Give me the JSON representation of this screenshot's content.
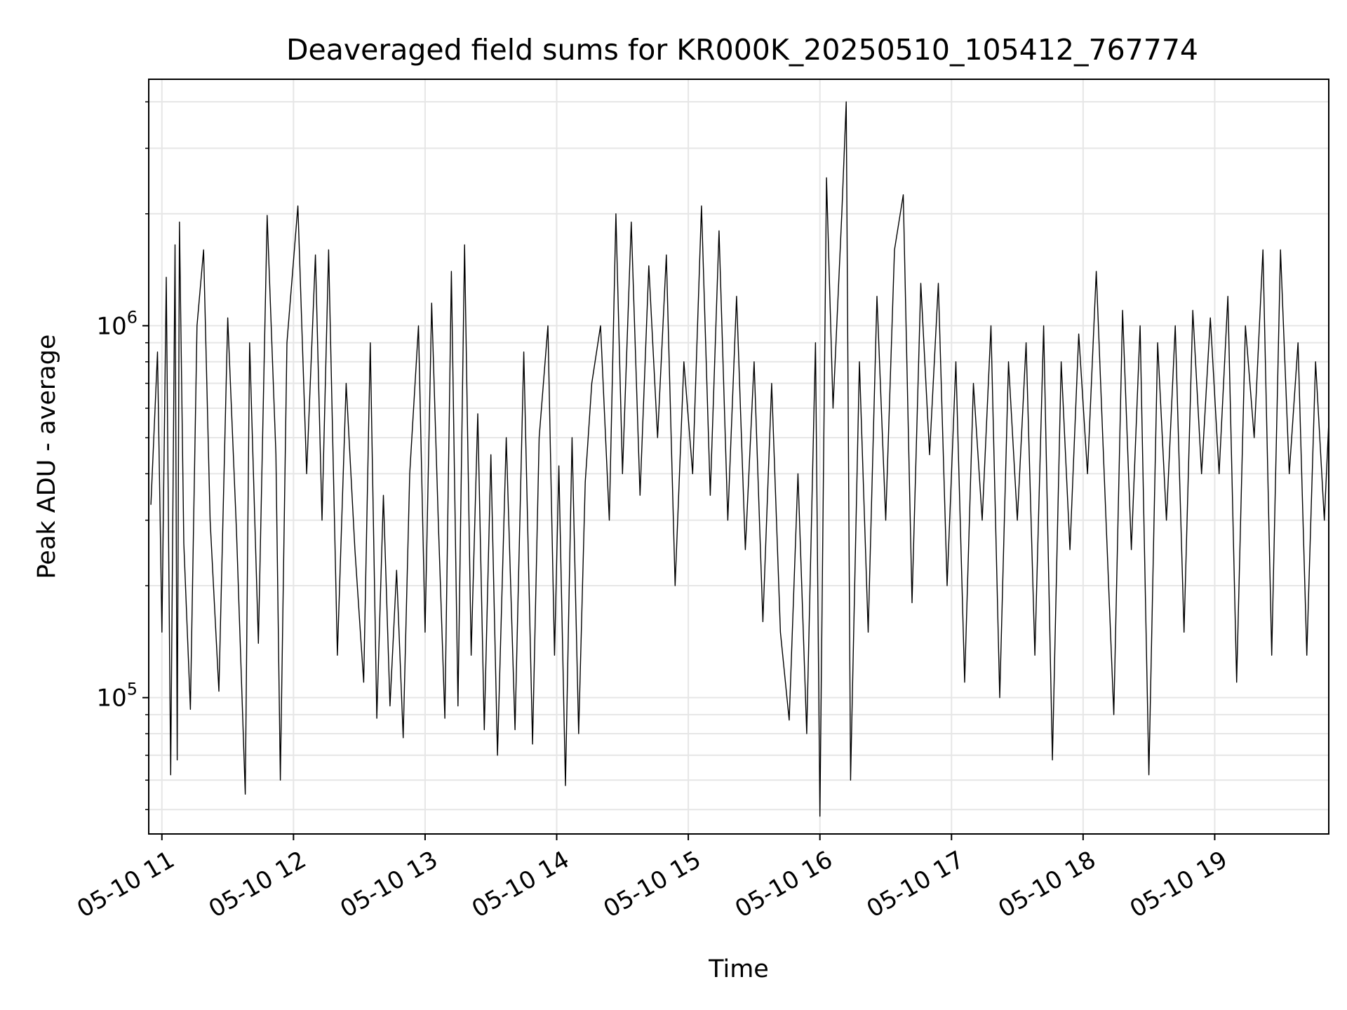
{
  "chart_data": {
    "type": "line",
    "title": "Deaveraged field sums for KR000K_20250510_105412_767774",
    "xlabel": "Time",
    "ylabel": "Peak ADU - average",
    "yscale": "log",
    "ylim": [
      43000,
      4600000
    ],
    "xlim": [
      "2025-05-10 10:54",
      "2025-05-10 19:52"
    ],
    "grid": true,
    "line_color": "#000000",
    "grid_color": "#e6e6e6",
    "x_ticks": [
      "2025-05-10 11:00",
      "2025-05-10 12:00",
      "2025-05-10 13:00",
      "2025-05-10 14:00",
      "2025-05-10 15:00",
      "2025-05-10 16:00",
      "2025-05-10 17:00",
      "2025-05-10 18:00",
      "2025-05-10 19:00"
    ],
    "x_tick_labels": [
      "05-10 11",
      "05-10 12",
      "05-10 13",
      "05-10 14",
      "05-10 15",
      "05-10 16",
      "05-10 17",
      "05-10 18",
      "05-10 19"
    ],
    "y_ticks": [
      {
        "value": 100000,
        "base": "10",
        "exp": "5"
      },
      {
        "value": 1000000,
        "base": "10",
        "exp": "6"
      }
    ],
    "series": [
      {
        "points": [
          [
            "2025-05-10 10:55",
            330000
          ],
          [
            "2025-05-10 10:58",
            850000
          ],
          [
            "2025-05-10 11:00",
            150000
          ],
          [
            "2025-05-10 11:02",
            1350000
          ],
          [
            "2025-05-10 11:04",
            62000
          ],
          [
            "2025-05-10 11:06",
            1650000
          ],
          [
            "2025-05-10 11:07",
            68000
          ],
          [
            "2025-05-10 11:08",
            1900000
          ],
          [
            "2025-05-10 11:10",
            260000
          ],
          [
            "2025-05-10 11:13",
            93000
          ],
          [
            "2025-05-10 11:16",
            1000000
          ],
          [
            "2025-05-10 11:19",
            1600000
          ],
          [
            "2025-05-10 11:22",
            300000
          ],
          [
            "2025-05-10 11:26",
            104000
          ],
          [
            "2025-05-10 11:30",
            1050000
          ],
          [
            "2025-05-10 11:34",
            280000
          ],
          [
            "2025-05-10 11:38",
            55000
          ],
          [
            "2025-05-10 11:40",
            900000
          ],
          [
            "2025-05-10 11:44",
            140000
          ],
          [
            "2025-05-10 11:48",
            1980000
          ],
          [
            "2025-05-10 11:52",
            450000
          ],
          [
            "2025-05-10 11:54",
            60000
          ],
          [
            "2025-05-10 11:57",
            900000
          ],
          [
            "2025-05-10 12:02",
            2100000
          ],
          [
            "2025-05-10 12:06",
            400000
          ],
          [
            "2025-05-10 12:10",
            1550000
          ],
          [
            "2025-05-10 12:13",
            300000
          ],
          [
            "2025-05-10 12:16",
            1600000
          ],
          [
            "2025-05-10 12:20",
            130000
          ],
          [
            "2025-05-10 12:24",
            700000
          ],
          [
            "2025-05-10 12:28",
            250000
          ],
          [
            "2025-05-10 12:32",
            110000
          ],
          [
            "2025-05-10 12:35",
            900000
          ],
          [
            "2025-05-10 12:38",
            88000
          ],
          [
            "2025-05-10 12:41",
            350000
          ],
          [
            "2025-05-10 12:44",
            95000
          ],
          [
            "2025-05-10 12:47",
            220000
          ],
          [
            "2025-05-10 12:50",
            78000
          ],
          [
            "2025-05-10 12:53",
            400000
          ],
          [
            "2025-05-10 12:57",
            1000000
          ],
          [
            "2025-05-10 13:00",
            150000
          ],
          [
            "2025-05-10 13:03",
            1150000
          ],
          [
            "2025-05-10 13:06",
            300000
          ],
          [
            "2025-05-10 13:09",
            88000
          ],
          [
            "2025-05-10 13:12",
            1400000
          ],
          [
            "2025-05-10 13:15",
            95000
          ],
          [
            "2025-05-10 13:18",
            1650000
          ],
          [
            "2025-05-10 13:21",
            130000
          ],
          [
            "2025-05-10 13:24",
            580000
          ],
          [
            "2025-05-10 13:27",
            82000
          ],
          [
            "2025-05-10 13:30",
            450000
          ],
          [
            "2025-05-10 13:33",
            70000
          ],
          [
            "2025-05-10 13:37",
            500000
          ],
          [
            "2025-05-10 13:41",
            82000
          ],
          [
            "2025-05-10 13:45",
            850000
          ],
          [
            "2025-05-10 13:49",
            75000
          ],
          [
            "2025-05-10 13:52",
            500000
          ],
          [
            "2025-05-10 13:56",
            1000000
          ],
          [
            "2025-05-10 13:59",
            130000
          ],
          [
            "2025-05-10 14:01",
            420000
          ],
          [
            "2025-05-10 14:04",
            58000
          ],
          [
            "2025-05-10 14:07",
            500000
          ],
          [
            "2025-05-10 14:10",
            80000
          ],
          [
            "2025-05-10 14:13",
            380000
          ],
          [
            "2025-05-10 14:16",
            700000
          ],
          [
            "2025-05-10 14:20",
            1000000
          ],
          [
            "2025-05-10 14:24",
            300000
          ],
          [
            "2025-05-10 14:27",
            2000000
          ],
          [
            "2025-05-10 14:30",
            400000
          ],
          [
            "2025-05-10 14:34",
            1900000
          ],
          [
            "2025-05-10 14:38",
            350000
          ],
          [
            "2025-05-10 14:42",
            1450000
          ],
          [
            "2025-05-10 14:46",
            500000
          ],
          [
            "2025-05-10 14:50",
            1550000
          ],
          [
            "2025-05-10 14:54",
            200000
          ],
          [
            "2025-05-10 14:58",
            800000
          ],
          [
            "2025-05-10 15:02",
            400000
          ],
          [
            "2025-05-10 15:06",
            2100000
          ],
          [
            "2025-05-10 15:10",
            350000
          ],
          [
            "2025-05-10 15:14",
            1800000
          ],
          [
            "2025-05-10 15:18",
            300000
          ],
          [
            "2025-05-10 15:22",
            1200000
          ],
          [
            "2025-05-10 15:26",
            250000
          ],
          [
            "2025-05-10 15:30",
            800000
          ],
          [
            "2025-05-10 15:34",
            160000
          ],
          [
            "2025-05-10 15:38",
            700000
          ],
          [
            "2025-05-10 15:42",
            150000
          ],
          [
            "2025-05-10 15:46",
            87000
          ],
          [
            "2025-05-10 15:50",
            400000
          ],
          [
            "2025-05-10 15:54",
            80000
          ],
          [
            "2025-05-10 15:58",
            900000
          ],
          [
            "2025-05-10 16:00",
            48000
          ],
          [
            "2025-05-10 16:03",
            2500000
          ],
          [
            "2025-05-10 16:06",
            600000
          ],
          [
            "2025-05-10 16:10",
            2000000
          ],
          [
            "2025-05-10 16:12",
            4000000
          ],
          [
            "2025-05-10 16:14",
            60000
          ],
          [
            "2025-05-10 16:18",
            800000
          ],
          [
            "2025-05-10 16:22",
            150000
          ],
          [
            "2025-05-10 16:26",
            1200000
          ],
          [
            "2025-05-10 16:30",
            300000
          ],
          [
            "2025-05-10 16:34",
            1600000
          ],
          [
            "2025-05-10 16:38",
            2250000
          ],
          [
            "2025-05-10 16:42",
            180000
          ],
          [
            "2025-05-10 16:46",
            1300000
          ],
          [
            "2025-05-10 16:50",
            450000
          ],
          [
            "2025-05-10 16:54",
            1300000
          ],
          [
            "2025-05-10 16:58",
            200000
          ],
          [
            "2025-05-10 17:02",
            800000
          ],
          [
            "2025-05-10 17:06",
            110000
          ],
          [
            "2025-05-10 17:10",
            700000
          ],
          [
            "2025-05-10 17:14",
            300000
          ],
          [
            "2025-05-10 17:18",
            1000000
          ],
          [
            "2025-05-10 17:22",
            100000
          ],
          [
            "2025-05-10 17:26",
            800000
          ],
          [
            "2025-05-10 17:30",
            300000
          ],
          [
            "2025-05-10 17:34",
            900000
          ],
          [
            "2025-05-10 17:38",
            130000
          ],
          [
            "2025-05-10 17:42",
            1000000
          ],
          [
            "2025-05-10 17:46",
            68000
          ],
          [
            "2025-05-10 17:50",
            800000
          ],
          [
            "2025-05-10 17:54",
            250000
          ],
          [
            "2025-05-10 17:58",
            950000
          ],
          [
            "2025-05-10 18:02",
            400000
          ],
          [
            "2025-05-10 18:06",
            1400000
          ],
          [
            "2025-05-10 18:10",
            350000
          ],
          [
            "2025-05-10 18:14",
            90000
          ],
          [
            "2025-05-10 18:18",
            1100000
          ],
          [
            "2025-05-10 18:22",
            250000
          ],
          [
            "2025-05-10 18:26",
            1000000
          ],
          [
            "2025-05-10 18:30",
            62000
          ],
          [
            "2025-05-10 18:34",
            900000
          ],
          [
            "2025-05-10 18:38",
            300000
          ],
          [
            "2025-05-10 18:42",
            1000000
          ],
          [
            "2025-05-10 18:46",
            150000
          ],
          [
            "2025-05-10 18:50",
            1100000
          ],
          [
            "2025-05-10 18:54",
            400000
          ],
          [
            "2025-05-10 18:58",
            1050000
          ],
          [
            "2025-05-10 19:02",
            400000
          ],
          [
            "2025-05-10 19:06",
            1200000
          ],
          [
            "2025-05-10 19:10",
            110000
          ],
          [
            "2025-05-10 19:14",
            1000000
          ],
          [
            "2025-05-10 19:18",
            500000
          ],
          [
            "2025-05-10 19:22",
            1600000
          ],
          [
            "2025-05-10 19:26",
            130000
          ],
          [
            "2025-05-10 19:30",
            1600000
          ],
          [
            "2025-05-10 19:34",
            400000
          ],
          [
            "2025-05-10 19:38",
            900000
          ],
          [
            "2025-05-10 19:42",
            130000
          ],
          [
            "2025-05-10 19:46",
            800000
          ],
          [
            "2025-05-10 19:50",
            300000
          ],
          [
            "2025-05-10 19:52",
            550000
          ]
        ]
      }
    ]
  }
}
